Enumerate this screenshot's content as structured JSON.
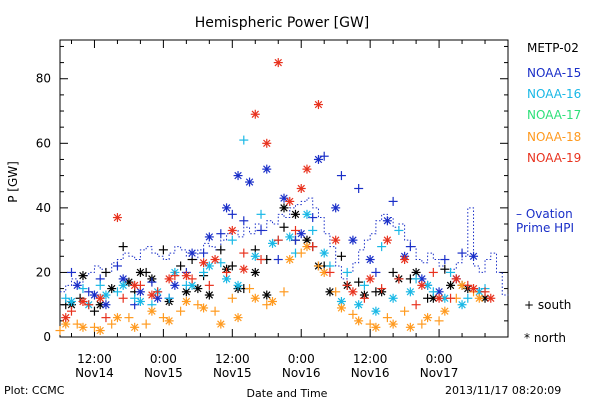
{
  "footer": {
    "plot_credit": "Plot: CCMC",
    "timestamp": "2013/11/17 08:20:09"
  },
  "legend": {
    "items": [
      {
        "label": "METP-02",
        "color": "#000000"
      },
      {
        "label": "NOAA-15",
        "color": "#1a2fc8"
      },
      {
        "label": "NOAA-16",
        "color": "#19b8e6"
      },
      {
        "label": "NOAA-17",
        "color": "#2ee07a"
      },
      {
        "label": "NOAA-18",
        "color": "#ff9a1f"
      },
      {
        "label": "NOAA-19",
        "color": "#e8321e"
      }
    ],
    "ovation_label": "– Ovation\nPrime HPI",
    "ovation_color": "#1a2fc8",
    "south_label": "+ south",
    "north_label": "* north"
  },
  "chart_data": {
    "type": "scatter",
    "title": "Hemispheric Power [GW]",
    "ylabel": "P [GW]",
    "xlabel": "Date and Time",
    "ylim": [
      0,
      92
    ],
    "yticks": [
      0,
      20,
      40,
      60,
      80
    ],
    "xlim": [
      6,
      84
    ],
    "x_unit": "hours since 2013-11-14 00:00",
    "x_ticks": [
      {
        "x": 12,
        "line1": "12:00",
        "line2": "Nov14"
      },
      {
        "x": 24,
        "line1": "0:00",
        "line2": "Nov15"
      },
      {
        "x": 36,
        "line1": "12:00",
        "line2": "Nov15"
      },
      {
        "x": 48,
        "line1": "0:00",
        "line2": "Nov16"
      },
      {
        "x": 60,
        "line1": "12:00",
        "line2": "Nov16"
      },
      {
        "x": 72,
        "line1": "0:00",
        "line2": "Nov17"
      }
    ],
    "ovation_hpi": {
      "name": "Ovation Prime HPI",
      "x": [
        6,
        7,
        8,
        9,
        10,
        11,
        12,
        13,
        14,
        15,
        16,
        17,
        18,
        19,
        20,
        21,
        22,
        23,
        24,
        25,
        26,
        27,
        28,
        29,
        30,
        31,
        32,
        33,
        34,
        35,
        36,
        37,
        38,
        39,
        40,
        41,
        42,
        43,
        44,
        45,
        46,
        47,
        48,
        49,
        50,
        51,
        52,
        53,
        54,
        55,
        56,
        57,
        58,
        59,
        60,
        61,
        62,
        63,
        64,
        65,
        66,
        67,
        68,
        69,
        70,
        71,
        72,
        73,
        74,
        75,
        76,
        77,
        78,
        79,
        80,
        81,
        82,
        83
      ],
      "y": [
        14,
        16,
        18,
        17,
        19,
        20,
        22,
        21,
        20,
        23,
        24,
        26,
        25,
        24,
        27,
        28,
        26,
        25,
        24,
        26,
        28,
        27,
        25,
        24,
        27,
        29,
        28,
        27,
        30,
        32,
        33,
        31,
        34,
        32,
        35,
        33,
        36,
        35,
        38,
        37,
        40,
        41,
        42,
        43,
        40,
        37,
        32,
        28,
        22,
        18,
        20,
        23,
        27,
        30,
        32,
        36,
        38,
        37,
        34,
        35,
        30,
        28,
        24,
        23,
        26,
        24,
        22,
        20,
        21,
        23,
        25,
        40,
        22,
        20,
        24,
        26,
        20,
        13
      ]
    },
    "series": [
      {
        "name": "METP-02",
        "color": "#000000",
        "south": {
          "x": [
            7,
            9.5,
            12,
            14,
            17,
            19,
            21,
            24,
            27,
            29,
            31,
            34,
            36,
            38,
            40,
            42,
            45,
            47,
            50,
            52,
            55,
            58,
            61,
            64,
            67,
            70,
            73,
            76,
            79
          ],
          "y": [
            10,
            12,
            8,
            20,
            28,
            14,
            20,
            27,
            22,
            24,
            19,
            27,
            22,
            15,
            27,
            24,
            34,
            30,
            28,
            22,
            25,
            17,
            14,
            20,
            18,
            12,
            21,
            16,
            14
          ]
        },
        "north": {
          "x": [
            8,
            10,
            13,
            15,
            18,
            20,
            22,
            25,
            28,
            30,
            32,
            35,
            37,
            40,
            42,
            45,
            47,
            49,
            51,
            53,
            56,
            59,
            62,
            65,
            68,
            71,
            74,
            77,
            80
          ],
          "y": [
            10,
            19,
            10,
            15,
            17,
            20,
            18,
            11,
            14,
            15,
            13,
            21,
            15,
            20,
            13,
            40,
            38,
            30,
            22,
            14,
            16,
            13,
            14,
            18,
            20,
            12,
            16,
            15,
            12
          ]
        }
      },
      {
        "name": "NOAA-15",
        "color": "#1a2fc8",
        "south": {
          "x": [
            8,
            11,
            13,
            16,
            19,
            22,
            25,
            28,
            31,
            34,
            36,
            38,
            41,
            44,
            47,
            50,
            52,
            55,
            58,
            61,
            64,
            67,
            70,
            73,
            76,
            79
          ],
          "y": [
            20,
            14,
            18,
            22,
            10,
            17,
            12,
            20,
            26,
            32,
            38,
            36,
            33,
            24,
            30,
            37,
            56,
            50,
            46,
            20,
            42,
            28,
            16,
            24,
            26,
            14
          ]
        },
        "north": {
          "x": [
            9,
            12,
            14,
            17,
            20,
            23,
            26,
            29,
            32,
            35,
            37,
            39,
            42,
            45,
            48,
            51,
            54,
            57,
            60,
            63,
            66,
            69,
            72,
            75,
            78
          ],
          "y": [
            16,
            13,
            10,
            18,
            14,
            12,
            16,
            26,
            31,
            40,
            50,
            48,
            52,
            43,
            32,
            55,
            40,
            30,
            24,
            36,
            25,
            18,
            14,
            18,
            25
          ]
        }
      },
      {
        "name": "NOAA-16",
        "color": "#19b8e6",
        "south": {
          "x": [
            7,
            10,
            13,
            16,
            19,
            22,
            25,
            28,
            31,
            34,
            36,
            38,
            41,
            44,
            47,
            50,
            53,
            56,
            59,
            62,
            65,
            68,
            71,
            74,
            77,
            80
          ],
          "y": [
            12,
            15,
            16,
            14,
            12,
            10,
            12,
            16,
            20,
            23,
            30,
            61,
            38,
            30,
            26,
            33,
            22,
            20,
            16,
            28,
            33,
            18,
            14,
            20,
            12,
            15
          ]
        },
        "north": {
          "x": [
            8,
            11,
            14,
            17,
            20,
            23,
            26,
            29,
            32,
            35,
            37,
            40,
            43,
            46,
            49,
            52,
            55,
            58,
            61,
            64,
            67,
            70,
            73,
            76,
            79
          ],
          "y": [
            11,
            10,
            13,
            16,
            11,
            14,
            20,
            16,
            22,
            18,
            16,
            25,
            29,
            31,
            38,
            26,
            11,
            10,
            8,
            12,
            14,
            16,
            12,
            10,
            14
          ]
        }
      },
      {
        "name": "NOAA-18",
        "color": "#ff9a1f",
        "south": {
          "x": [
            6,
            9,
            12,
            15,
            18,
            21,
            24,
            27,
            30,
            33,
            36,
            39,
            42,
            45,
            48,
            51,
            54,
            57,
            60,
            63,
            66,
            69,
            72,
            75,
            78
          ],
          "y": [
            2,
            4,
            3,
            4,
            6,
            4,
            6,
            8,
            10,
            8,
            12,
            15,
            10,
            14,
            26,
            22,
            14,
            7,
            4,
            6,
            8,
            4,
            5,
            12,
            14
          ]
        },
        "north": {
          "x": [
            7,
            10,
            13,
            16,
            19,
            22,
            25,
            28,
            31,
            34,
            37,
            40,
            43,
            46,
            49,
            52,
            55,
            58,
            61,
            64,
            67,
            70,
            73,
            76,
            79
          ],
          "y": [
            4,
            3,
            2,
            6,
            3,
            8,
            5,
            11,
            9,
            4,
            6,
            12,
            11,
            24,
            28,
            20,
            9,
            5,
            3,
            4,
            3,
            6,
            8,
            16,
            12
          ]
        }
      },
      {
        "name": "NOAA-19",
        "color": "#e8321e",
        "south": {
          "x": [
            8,
            11,
            14,
            17,
            20,
            23,
            26,
            29,
            32,
            35,
            38,
            41,
            44,
            47,
            50,
            53,
            56,
            59,
            62,
            65,
            68,
            71,
            74,
            77,
            80
          ],
          "y": [
            8,
            10,
            6,
            12,
            16,
            14,
            19,
            18,
            16,
            20,
            26,
            24,
            30,
            33,
            28,
            20,
            16,
            12,
            15,
            18,
            10,
            20,
            12,
            16,
            14
          ]
        },
        "north": {
          "x": [
            7,
            10,
            13,
            16,
            19,
            22,
            25,
            28,
            31,
            33,
            36,
            38,
            40,
            42,
            44,
            46,
            48,
            49,
            51,
            54,
            57,
            60,
            63,
            66,
            69,
            72,
            75,
            78,
            81
          ],
          "y": [
            6,
            11,
            12,
            37,
            16,
            13,
            18,
            19,
            23,
            24,
            33,
            21,
            69,
            60,
            85,
            42,
            46,
            52,
            72,
            30,
            14,
            18,
            30,
            24,
            16,
            12,
            18,
            15,
            12
          ]
        }
      }
    ]
  }
}
